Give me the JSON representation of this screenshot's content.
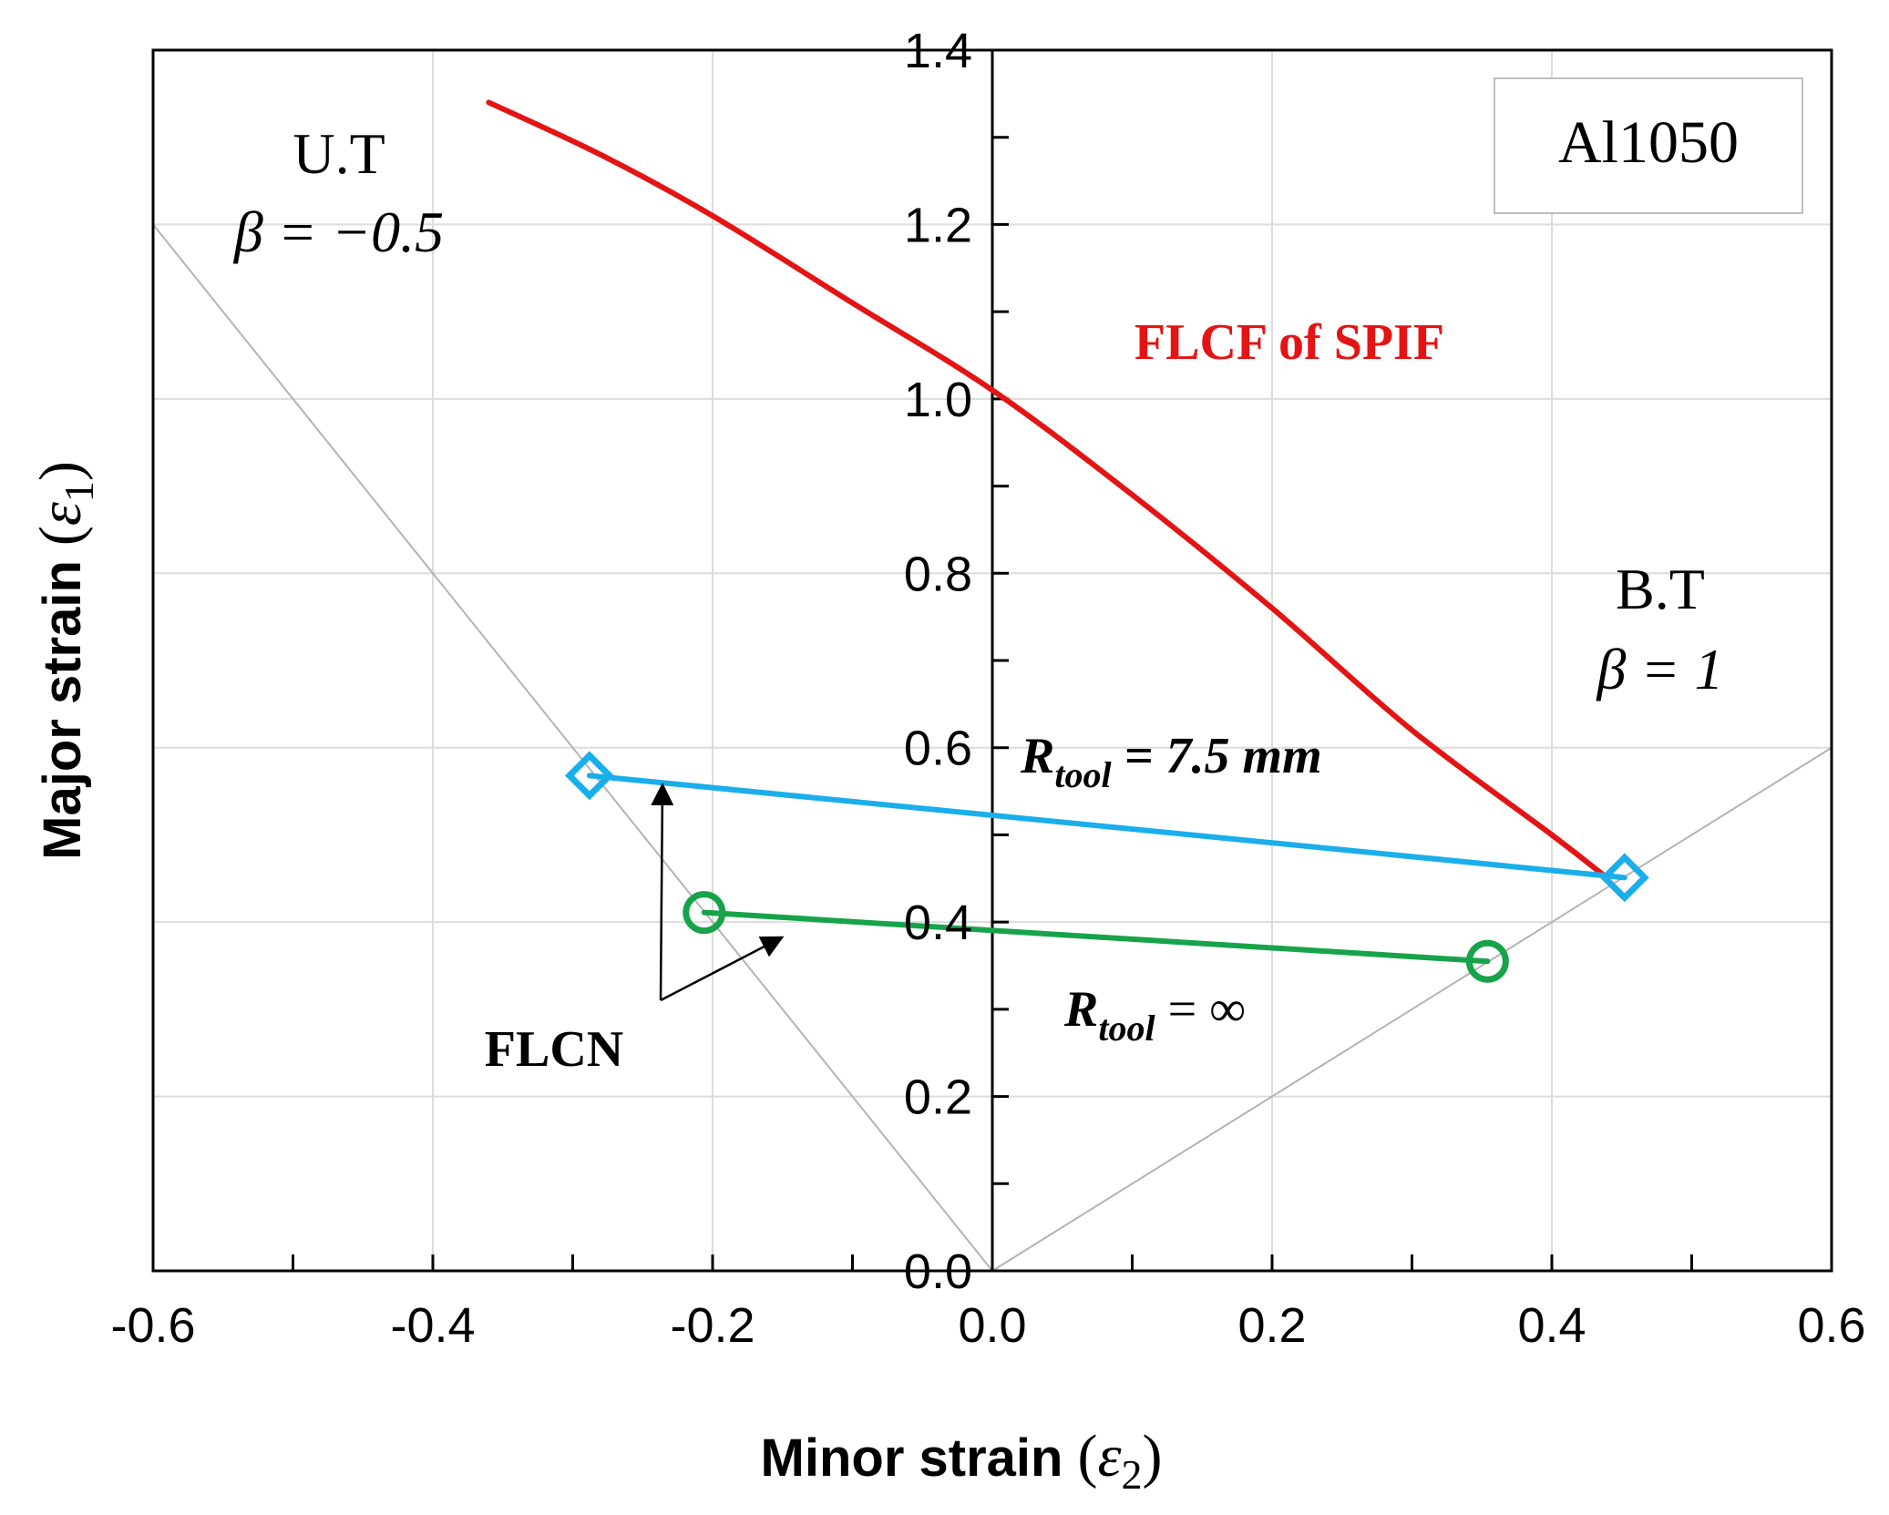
{
  "chart_data": {
    "type": "line",
    "title": "",
    "xlabel": "Minor strain",
    "xlabel_symbol": "ε",
    "xlabel_sub": "2",
    "ylabel": "Major strain",
    "ylabel_symbol": "ε",
    "ylabel_sub": "1",
    "xlim": [
      -0.6,
      0.6
    ],
    "ylim": [
      0.0,
      1.4
    ],
    "xticks": [
      -0.6,
      -0.4,
      -0.2,
      0.0,
      0.2,
      0.4,
      0.6
    ],
    "xtick_labels": [
      "-0.6",
      "-0.4",
      "-0.2",
      "0.0",
      "0.2",
      "0.4",
      "0.6"
    ],
    "yticks": [
      0.0,
      0.2,
      0.4,
      0.6,
      0.8,
      1.0,
      1.2,
      1.4
    ],
    "ytick_labels": [
      "0.0",
      "0.2",
      "0.4",
      "0.6",
      "0.8",
      "1.0",
      "1.2",
      "1.4"
    ],
    "grid": true,
    "legend_box": "Al1050",
    "series": [
      {
        "name": "FLCF of SPIF",
        "color": "#e41414",
        "marker": "none",
        "x": [
          -0.36,
          -0.28,
          -0.2,
          -0.1,
          0.0,
          0.1,
          0.2,
          0.3,
          0.4,
          0.44
        ],
        "y": [
          1.34,
          1.28,
          1.21,
          1.11,
          1.01,
          0.89,
          0.76,
          0.62,
          0.5,
          0.45
        ]
      },
      {
        "name": "R_tool = 7.5 mm",
        "color": "#1aaeea",
        "marker": "diamond",
        "x": [
          -0.288,
          0.452
        ],
        "y": [
          0.568,
          0.451
        ]
      },
      {
        "name": "R_tool = ∞",
        "color": "#17a34a",
        "marker": "circle",
        "x": [
          -0.206,
          0.354
        ],
        "y": [
          0.411,
          0.355
        ]
      },
      {
        "name": "U.T line",
        "color": "#b3b3b3",
        "marker": "none",
        "x": [
          0.0,
          -0.6
        ],
        "y": [
          0.0,
          1.2
        ]
      },
      {
        "name": "B.T line",
        "color": "#b3b3b3",
        "marker": "none",
        "x": [
          0.0,
          0.6
        ],
        "y": [
          0.0,
          0.6
        ]
      }
    ],
    "annotations": {
      "ut_label": "U.T",
      "ut_beta": "β = −0.5",
      "bt_label": "B.T",
      "bt_beta": "β = 1",
      "flcf_label": "FLCF of SPIF",
      "rtool_symbol": "R",
      "rtool_sub": "tool",
      "rtool_75_value": "= 7.5 mm",
      "rtool_inf_value": "= ∞",
      "flcn_label": "FLCN"
    }
  }
}
